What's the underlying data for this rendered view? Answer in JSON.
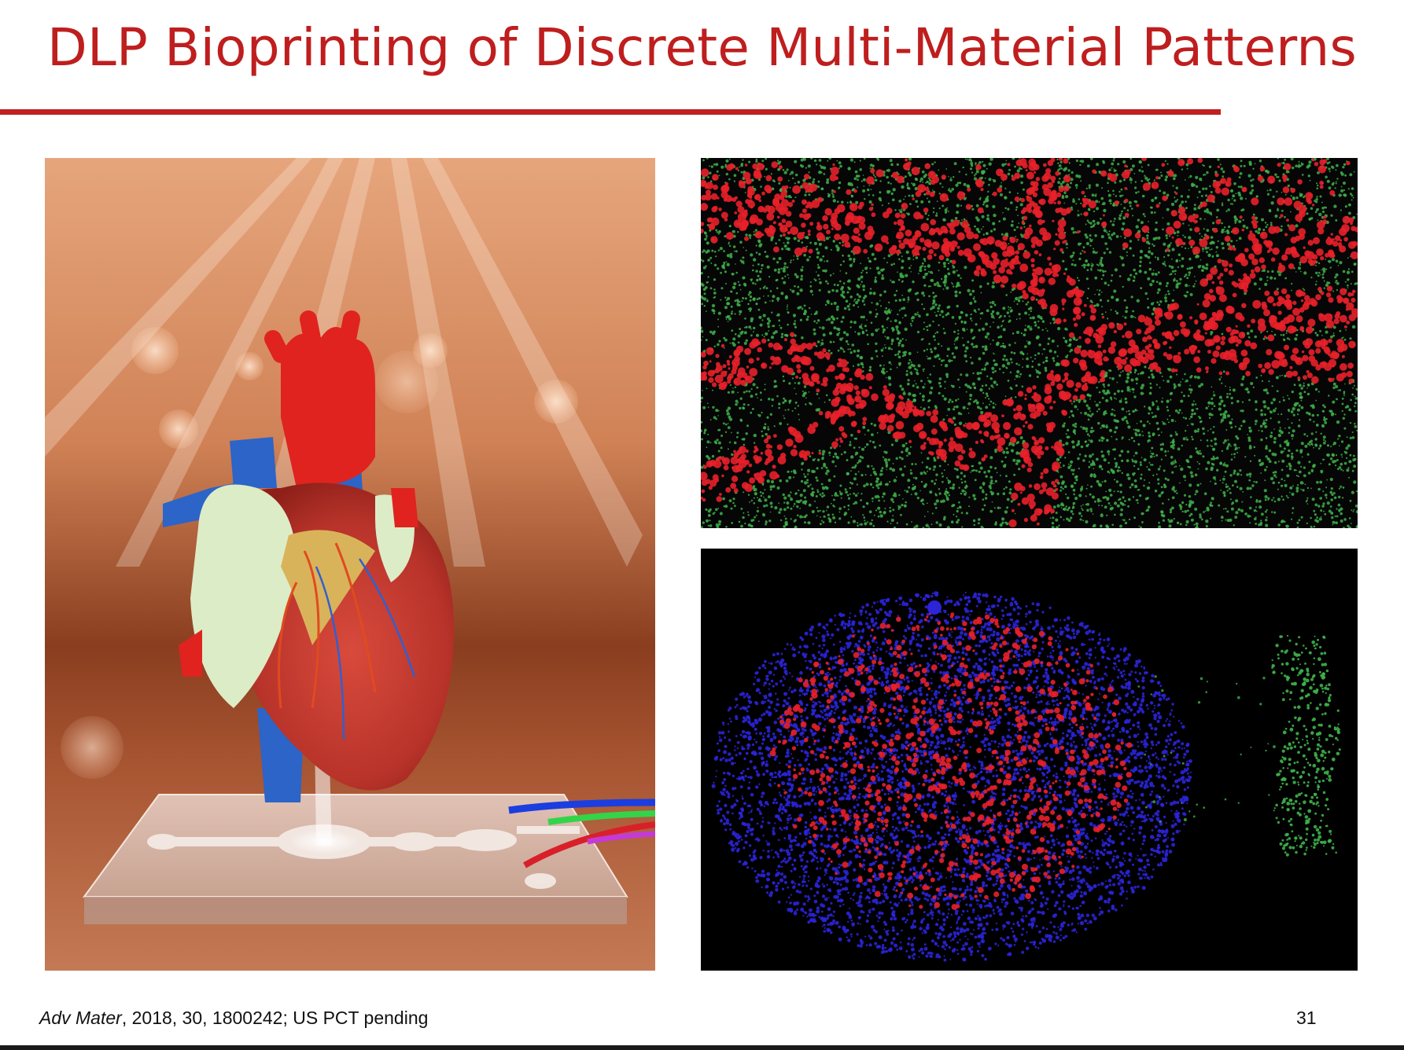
{
  "slide": {
    "title": "DLP Bioprinting of Discrete Multi-Material Patterns",
    "citation": {
      "journal": "Adv Mater",
      "rest": ", 2018, 30, 1800242; US PCT pending"
    },
    "slide_number": "31"
  },
  "colors": {
    "title": "#bf1e1e",
    "rule": "#c0201f",
    "fluor_red": "#e8202a",
    "fluor_green": "#3fb24a",
    "fluor_blue": "#2b24d8"
  },
  "figures": {
    "left": "heart-on-chip-illustration",
    "top_right": "red-green-fluorescence-micrograph",
    "bottom_right": "blue-red-green-fluorescence-micrograph"
  }
}
